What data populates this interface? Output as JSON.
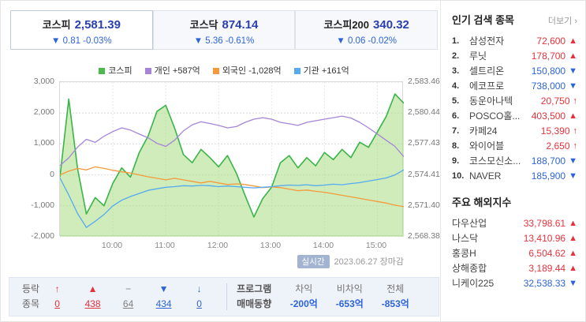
{
  "tabs": [
    {
      "name": "코스피",
      "price": "2,581.39",
      "change": "▼ 0.81 -0.03%",
      "dir": "down"
    },
    {
      "name": "코스닥",
      "price": "874.14",
      "change": "▼ 5.36 -0.61%",
      "dir": "down"
    },
    {
      "name": "코스피200",
      "price": "340.32",
      "change": "▼ 0.06 -0.02%",
      "dir": "down"
    }
  ],
  "legend": [
    {
      "label": "코스피",
      "value": "",
      "color": "#4db84d"
    },
    {
      "label": "개인",
      "value": "+587억",
      "color": "#a585d8"
    },
    {
      "label": "외국인",
      "value": "-1,028억",
      "color": "#f59a3c"
    },
    {
      "label": "기관",
      "value": "+161억",
      "color": "#55aaf0"
    }
  ],
  "chart_data": {
    "type": "area",
    "x_minutes": [
      0,
      10,
      20,
      30,
      40,
      50,
      60,
      70,
      80,
      90,
      100,
      110,
      120,
      130,
      140,
      150,
      160,
      170,
      180,
      190,
      200,
      210,
      220,
      230,
      240,
      250,
      260,
      270,
      280,
      290,
      300,
      310,
      320,
      330,
      340,
      350,
      360,
      370,
      380,
      390
    ],
    "x_tick_minutes": [
      60,
      120,
      180,
      240,
      300,
      360
    ],
    "x_tick_labels": [
      "10:00",
      "11:00",
      "12:00",
      "13:00",
      "14:00",
      "15:00"
    ],
    "left_axis": {
      "min": -2000,
      "max": 3000,
      "labels": [
        "3,000",
        "2,000",
        "1,000",
        "0",
        "-1,000",
        "-2,000"
      ]
    },
    "right_axis": {
      "min": 2568.38,
      "max": 2583.46,
      "labels": [
        "2,583.46",
        "2,580.44",
        "2,577.43",
        "2,574.41",
        "2,571.40",
        "2,568.38"
      ]
    },
    "series": [
      {
        "name": "코스피",
        "axis": "right",
        "type": "area",
        "color": "#39b54a",
        "fill": "#a8dd82",
        "values": [
          2574.2,
          2581.8,
          2575.0,
          2570.6,
          2572.2,
          2571.4,
          2573.6,
          2575.1,
          2574.2,
          2576.6,
          2578.2,
          2580.6,
          2581.2,
          2579.0,
          2576.4,
          2575.6,
          2576.9,
          2576.1,
          2575.2,
          2576.3,
          2574.6,
          2572.4,
          2570.3,
          2572.1,
          2573.2,
          2575.6,
          2576.3,
          2575.1,
          2576.1,
          2575.3,
          2576.6,
          2575.9,
          2576.9,
          2576.1,
          2577.6,
          2577.1,
          2578.6,
          2580.1,
          2582.3,
          2581.39
        ]
      },
      {
        "name": "개인",
        "axis": "left",
        "type": "line",
        "color": "#a585d8",
        "values": [
          300,
          550,
          900,
          1150,
          1050,
          1250,
          1400,
          1520,
          1450,
          1320,
          1200,
          1020,
          920,
          1120,
          1420,
          1620,
          1720,
          1660,
          1600,
          1520,
          1560,
          1700,
          1800,
          1850,
          1800,
          1700,
          1650,
          1600,
          1700,
          1750,
          1800,
          1850,
          1900,
          1840,
          1700,
          1520,
          1320,
          1120,
          920,
          587
        ]
      },
      {
        "name": "외국인",
        "axis": "left",
        "type": "line",
        "color": "#f59a3c",
        "values": [
          0,
          120,
          210,
          160,
          260,
          210,
          150,
          100,
          60,
          0,
          -60,
          -110,
          -160,
          -110,
          -160,
          -210,
          -260,
          -210,
          -260,
          -310,
          -290,
          -310,
          -360,
          -410,
          -390,
          -410,
          -460,
          -510,
          -490,
          -530,
          -560,
          -610,
          -660,
          -710,
          -760,
          -810,
          -860,
          -910,
          -980,
          -1028
        ]
      },
      {
        "name": "기관",
        "axis": "left",
        "type": "line",
        "color": "#55aaf0",
        "values": [
          -100,
          -650,
          -1250,
          -1700,
          -1500,
          -1280,
          -1000,
          -820,
          -700,
          -600,
          -500,
          -450,
          -400,
          -380,
          -350,
          -360,
          -340,
          -350,
          -380,
          -360,
          -380,
          -400,
          -420,
          -400,
          -380,
          -350,
          -330,
          -340,
          -320,
          -350,
          -330,
          -300,
          -320,
          -280,
          -250,
          -200,
          -150,
          -100,
          0,
          161
        ]
      }
    ],
    "footer": {
      "badge": "실시간",
      "date_text": "2023.06.27 장마감"
    }
  },
  "stats": {
    "updown": {
      "row1_label": "등락",
      "row2_label": "종목",
      "cols": [
        {
          "arrow": "↑",
          "count": "0",
          "dir": "up"
        },
        {
          "arrow": "▲",
          "count": "438",
          "dir": "up"
        },
        {
          "arrow": "−",
          "count": "64",
          "dir": "flat"
        },
        {
          "arrow": "▼",
          "count": "434",
          "dir": "down"
        },
        {
          "arrow": "↓",
          "count": "0",
          "dir": "down"
        }
      ]
    },
    "program": {
      "label_line1": "프로그램",
      "label_line2": "매매동향",
      "cols": [
        {
          "label": "차익",
          "value": "-200억",
          "dir": "down"
        },
        {
          "label": "비차익",
          "value": "-653억",
          "dir": "down"
        },
        {
          "label": "전체",
          "value": "-853억",
          "dir": "down"
        }
      ]
    }
  },
  "sidebar": {
    "popular": {
      "title": "인기 검색 종목",
      "more_label": "더보기 ›",
      "items": [
        {
          "rank": "1.",
          "name": "삼성전자",
          "price": "72,600",
          "arrow": "▲",
          "dir": "up"
        },
        {
          "rank": "2.",
          "name": "루닛",
          "price": "178,700",
          "arrow": "▲",
          "dir": "up"
        },
        {
          "rank": "3.",
          "name": "셀트리온",
          "price": "150,800",
          "arrow": "▼",
          "dir": "down"
        },
        {
          "rank": "4.",
          "name": "에코프로",
          "price": "738,000",
          "arrow": "▼",
          "dir": "down"
        },
        {
          "rank": "5.",
          "name": "동운아나텍",
          "price": "20,750",
          "arrow": "↑",
          "dir": "up"
        },
        {
          "rank": "6.",
          "name": "POSCO홀...",
          "price": "403,500",
          "arrow": "▲",
          "dir": "up"
        },
        {
          "rank": "7.",
          "name": "카페24",
          "price": "15,390",
          "arrow": "↑",
          "dir": "up"
        },
        {
          "rank": "8.",
          "name": "와이어블",
          "price": "2,650",
          "arrow": "↑",
          "dir": "up"
        },
        {
          "rank": "9.",
          "name": "코스모신소...",
          "price": "188,700",
          "arrow": "▼",
          "dir": "down"
        },
        {
          "rank": "10.",
          "name": "NAVER",
          "price": "185,900",
          "arrow": "▼",
          "dir": "down"
        }
      ]
    },
    "overseas": {
      "title": "주요 해외지수",
      "items": [
        {
          "name": "다우산업",
          "value": "33,798.61",
          "arrow": "▲",
          "dir": "up"
        },
        {
          "name": "나스닥",
          "value": "13,410.96",
          "arrow": "▲",
          "dir": "up"
        },
        {
          "name": "홍콩H",
          "value": "6,504.62",
          "arrow": "▲",
          "dir": "up"
        },
        {
          "name": "상해종합",
          "value": "3,189.44",
          "arrow": "▲",
          "dir": "up"
        },
        {
          "name": "니케이225",
          "value": "32,538.33",
          "arrow": "▼",
          "dir": "down"
        }
      ]
    }
  }
}
